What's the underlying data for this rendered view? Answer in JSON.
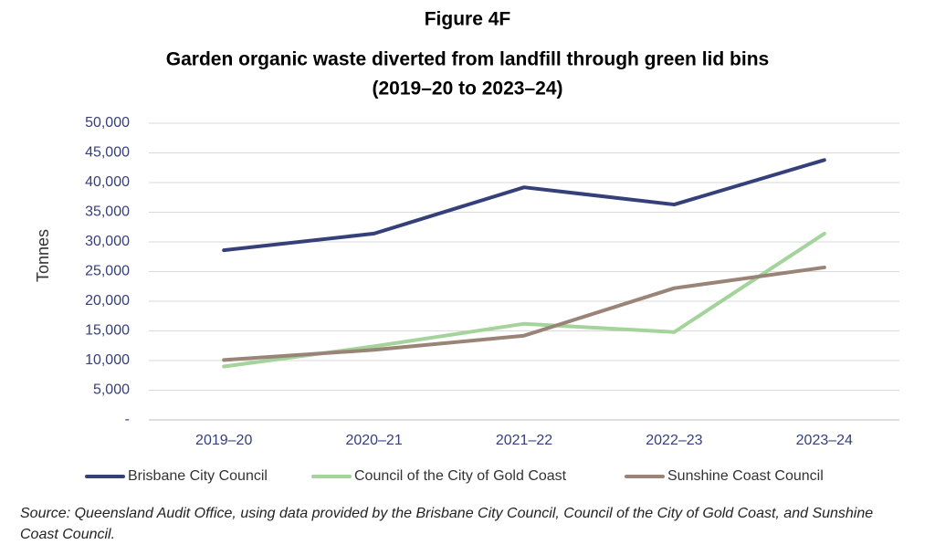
{
  "chart_data": {
    "type": "line",
    "title": [
      "Figure 4F",
      "Garden organic waste diverted from landfill through green lid bins",
      "(2019–20 to 2023–24)"
    ],
    "y_label": "Tonnes",
    "categories": [
      "2019–20",
      "2020–21",
      "2021–22",
      "2022–23",
      "2023–24"
    ],
    "series": [
      {
        "name": "Brisbane City Council",
        "color": "#353f7a",
        "values": [
          28600,
          31400,
          39200,
          36300,
          43800
        ]
      },
      {
        "name": "Council of the City of Gold Coast",
        "color": "#a4d39b",
        "values": [
          9000,
          12400,
          16200,
          14800,
          31400
        ]
      },
      {
        "name": "Sunshine Coast Council",
        "color": "#9a8478",
        "values": [
          10100,
          11800,
          14200,
          22200,
          25700
        ]
      }
    ],
    "ylim": [
      0,
      50000
    ],
    "yticks": [
      {
        "value": 0,
        "label": "-"
      },
      {
        "value": 5000,
        "label": "5,000"
      },
      {
        "value": 10000,
        "label": "10,000"
      },
      {
        "value": 15000,
        "label": "15,000"
      },
      {
        "value": 20000,
        "label": "20,000"
      },
      {
        "value": 25000,
        "label": "25,000"
      },
      {
        "value": 30000,
        "label": "30,000"
      },
      {
        "value": 35000,
        "label": "35,000"
      },
      {
        "value": 40000,
        "label": "40,000"
      },
      {
        "value": 45000,
        "label": "45,000"
      },
      {
        "value": 50000,
        "label": "50,000"
      }
    ],
    "grid": true,
    "legend": "bottom",
    "source": "Source: Queensland Audit Office, using data provided by the Brisbane City Council, Council of the City of Gold Coast, and Sunshine Coast Council."
  }
}
